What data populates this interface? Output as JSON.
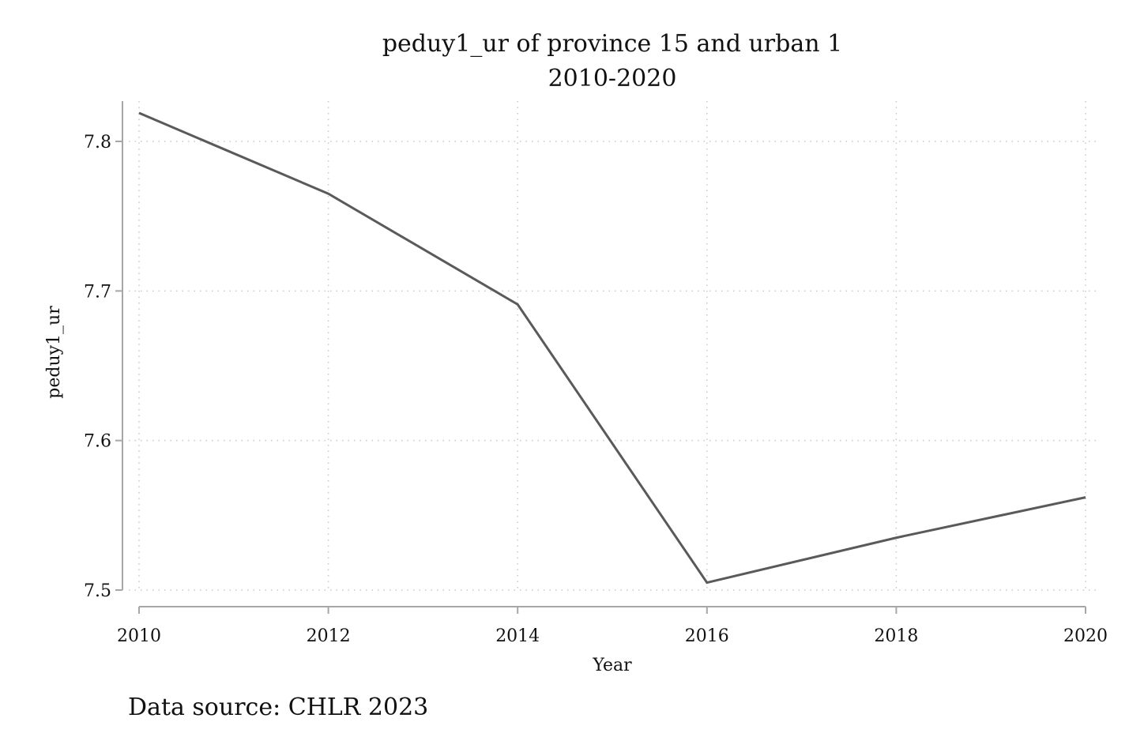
{
  "chart_data": {
    "type": "line",
    "title": "peduy1_ur of province 15 and urban 1",
    "subtitle": "2010-2020",
    "xlabel": "Year",
    "ylabel": "peduy1_ur",
    "note": "Data source: CHLR 2023",
    "x": [
      2010,
      2012,
      2014,
      2016,
      2018,
      2020
    ],
    "series": [
      {
        "values": [
          7.819,
          7.765,
          7.691,
          7.505,
          7.535,
          7.562
        ]
      }
    ],
    "xlim": [
      2010,
      2020
    ],
    "ylim": [
      7.5,
      7.8
    ],
    "xticks": [
      2010,
      2012,
      2014,
      2016,
      2018,
      2020
    ],
    "yticks": [
      7.5,
      7.6,
      7.7,
      7.8
    ],
    "xtick_labels": [
      "2010",
      "2012",
      "2014",
      "2016",
      "2018",
      "2020"
    ],
    "ytick_labels": [
      "7.5",
      "7.6",
      "7.7",
      "7.8"
    ],
    "grid": true,
    "line_color": "#5a5a5a",
    "axis_color": "#a6a6a6"
  }
}
